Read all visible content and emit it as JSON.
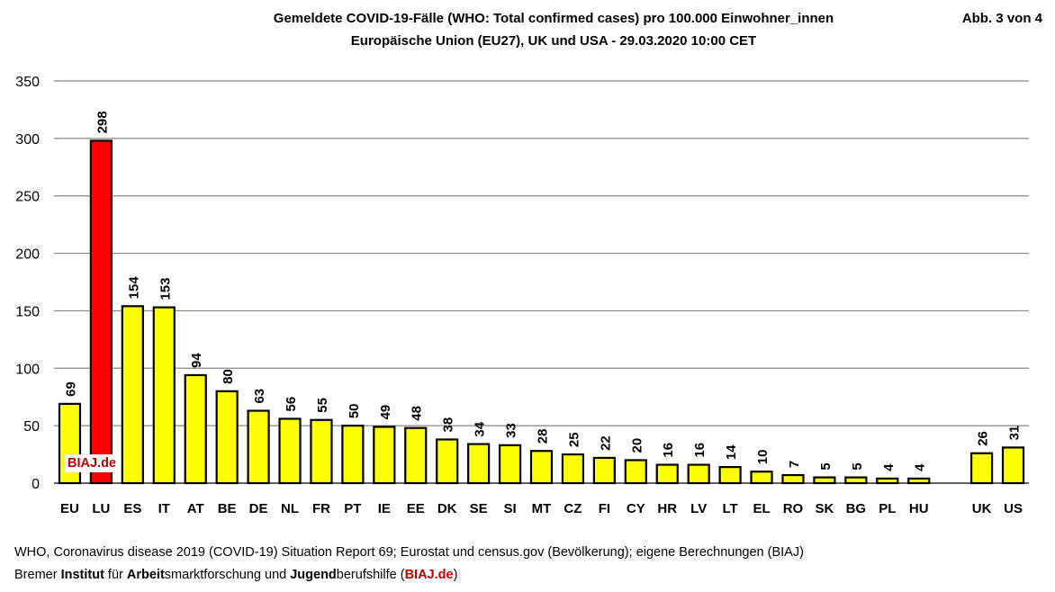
{
  "header": {
    "title_line1": "Gemeldete COVID-19-Fälle (WHO: Total confirmed cases) pro 100.000 Einwohner_innen",
    "title_line2": "Europäische Union (EU27), UK und USA - 29.03.2020 10:00 CET",
    "page_label": "Abb. 3 von 4"
  },
  "footer": {
    "source": "WHO, Coronavirus disease 2019 (COVID-19) Situation Report 69; Eurostat und census.gov (Bevölkerung); eigene Berechnungen (BIAJ)",
    "credit_parts": [
      {
        "text": "Bremer ",
        "bold": false
      },
      {
        "text": "Institut",
        "bold": true
      },
      {
        "text": " für ",
        "bold": false
      },
      {
        "text": "Arbeit",
        "bold": true
      },
      {
        "text": "smarktforschung und ",
        "bold": false
      },
      {
        "text": "Jugend",
        "bold": true
      },
      {
        "text": "berufshilfe (",
        "bold": false
      },
      {
        "text": "BIAJ.de",
        "bold": true,
        "red": true
      },
      {
        "text": ")",
        "bold": false
      }
    ]
  },
  "watermark": "BIAJ.de",
  "colors": {
    "bar_default": "#ffff00",
    "bar_highlight": "#ff0000",
    "bar_stroke": "#000000",
    "grid": "#868686",
    "brand_red": "#c00000"
  },
  "chart_data": {
    "type": "bar",
    "categories": [
      "EU",
      "LU",
      "ES",
      "IT",
      "AT",
      "BE",
      "DE",
      "NL",
      "FR",
      "PT",
      "IE",
      "EE",
      "DK",
      "SE",
      "SI",
      "MT",
      "CZ",
      "FI",
      "CY",
      "HR",
      "LV",
      "LT",
      "EL",
      "RO",
      "SK",
      "BG",
      "PL",
      "HU",
      "",
      "UK",
      "US"
    ],
    "values": [
      69,
      298,
      154,
      153,
      94,
      80,
      63,
      56,
      55,
      50,
      49,
      48,
      38,
      34,
      33,
      28,
      25,
      22,
      20,
      16,
      16,
      14,
      10,
      7,
      5,
      5,
      4,
      4,
      null,
      26,
      31
    ],
    "highlight": [
      "LU"
    ],
    "ylim": [
      0,
      350
    ],
    "yticks": [
      0,
      50,
      100,
      150,
      200,
      250,
      300,
      350
    ],
    "grid": true,
    "data_labels": true,
    "legend": "none"
  }
}
